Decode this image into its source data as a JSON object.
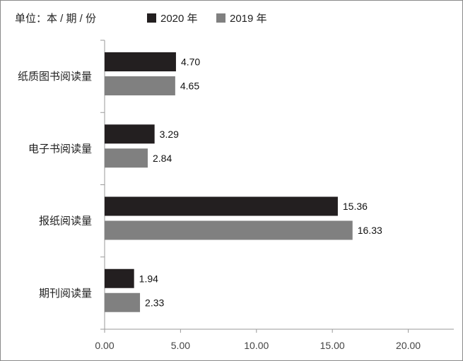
{
  "chart_data": {
    "type": "bar",
    "orientation": "horizontal",
    "unit_label": "单位：本 / 期 / 份",
    "categories": [
      "纸质图书阅读量",
      "电子书阅读量",
      "报纸阅读量",
      "期刊阅读量"
    ],
    "series": [
      {
        "name": "2020 年",
        "color": "#231f20",
        "values": [
          4.7,
          3.29,
          15.36,
          1.94
        ],
        "labels": [
          "4.70",
          "3.29",
          "15.36",
          "1.94"
        ]
      },
      {
        "name": "2019 年",
        "color": "#808080",
        "values": [
          4.65,
          2.84,
          16.33,
          2.33
        ],
        "labels": [
          "4.65",
          "2.84",
          "16.33",
          "2.33"
        ]
      }
    ],
    "xlim": [
      0,
      23
    ],
    "xticks": [
      0,
      5,
      10,
      15,
      20
    ],
    "xtick_labels": [
      "0.00",
      "5.00",
      "10.00",
      "15.00",
      "20.00"
    ],
    "grid": false,
    "legend_position": "top"
  }
}
